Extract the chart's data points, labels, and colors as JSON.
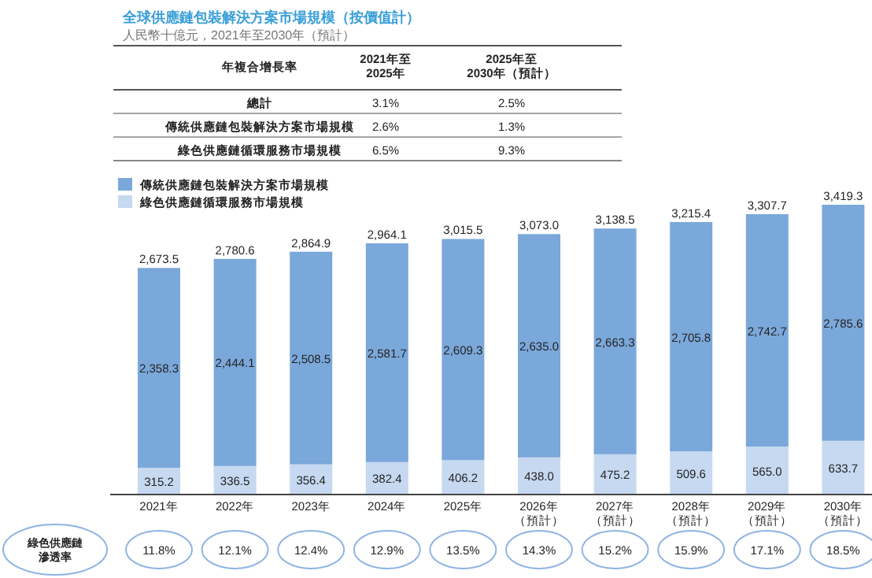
{
  "chart_data": {
    "type": "bar",
    "stacked": true,
    "legend": "top left",
    "title": "全球供應鏈包裝解決方案市場規模（按價值計）",
    "subtitle": "人民幣十億元，2021年至2030年（預計）",
    "categories": [
      "2021年",
      "2022年",
      "2023年",
      "2024年",
      "2025年",
      "2026年（預計）",
      "2027年（預計）",
      "2028年（預計）",
      "2029年（預計）",
      "2030年（預計）"
    ],
    "series": [
      {
        "name": "綠色供應鏈循環服務市場規模",
        "color": "#c6d9f1",
        "values": [
          315.2,
          336.5,
          356.4,
          382.4,
          406.2,
          438.0,
          475.2,
          509.6,
          565.0,
          633.7
        ],
        "value_labels": [
          "315.2",
          "336.5",
          "356.4",
          "382.4",
          "406.2",
          "438.0",
          "475.2",
          "509.6",
          "565.0",
          "633.7"
        ]
      },
      {
        "name": "傳統供應鏈包裝解決方案市場規模",
        "color": "#7ba8da",
        "values": [
          2358.3,
          2444.1,
          2508.5,
          2581.7,
          2609.3,
          2635.0,
          2663.3,
          2705.8,
          2742.7,
          2785.6
        ],
        "value_labels": [
          "2,358.3",
          "2,444.1",
          "2,508.5",
          "2,581.7",
          "2,609.3",
          "2,635.0",
          "2,663.3",
          "2,705.8",
          "2,742.7",
          "2,785.6"
        ]
      }
    ],
    "totals": [
      "2,673.5",
      "2,780.6",
      "2,864.9",
      "2,964.1",
      "3,015.5",
      "3,073.0",
      "3,138.5",
      "3,215.4",
      "3,307.7",
      "3,419.3"
    ],
    "annotations": [
      "年複合增長率",
      "2021年至2025年",
      "2025年至2030年（預計）",
      "總計",
      "3.1%",
      "2.5%",
      "傳統供應鏈包裝解決方案市場規模",
      "2.6%",
      "1.3%",
      "綠色供應鏈循環服務市場規模",
      "6.5%",
      "9.3%",
      "綠色供應鏈滲透率",
      "11.8%",
      "12.1%",
      "12.4%",
      "12.9%",
      "13.5%",
      "14.3%",
      "15.2%",
      "15.9%",
      "17.1%",
      "18.5%"
    ]
  }
}
